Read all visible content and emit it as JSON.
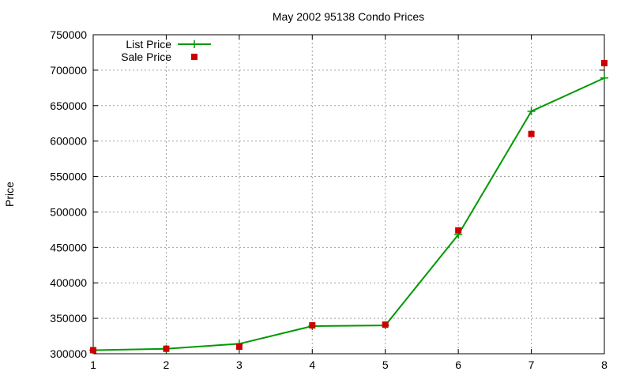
{
  "chart_data": {
    "type": "line",
    "title": "May 2002 95138 Condo Prices",
    "xlabel": "",
    "ylabel": "Price",
    "x": [
      1,
      2,
      3,
      4,
      5,
      6,
      7,
      8
    ],
    "xlim": [
      1,
      8
    ],
    "ylim": [
      300000,
      750000
    ],
    "x_ticks": [
      1,
      2,
      3,
      4,
      5,
      6,
      7,
      8
    ],
    "y_ticks": [
      300000,
      350000,
      400000,
      450000,
      500000,
      550000,
      600000,
      650000,
      700000,
      750000
    ],
    "grid": true,
    "legend_position": "top-left",
    "series": [
      {
        "name": "List Price",
        "style": "linespoints",
        "marker": "plus",
        "color": "#009900",
        "values": [
          305000,
          307000,
          314000,
          339000,
          340000,
          468000,
          642000,
          689000
        ]
      },
      {
        "name": "Sale Price",
        "style": "points",
        "marker": "square",
        "color": "#cc0000",
        "values": [
          305000,
          307000,
          310000,
          340000,
          341000,
          474000,
          610000,
          710000
        ]
      }
    ]
  }
}
